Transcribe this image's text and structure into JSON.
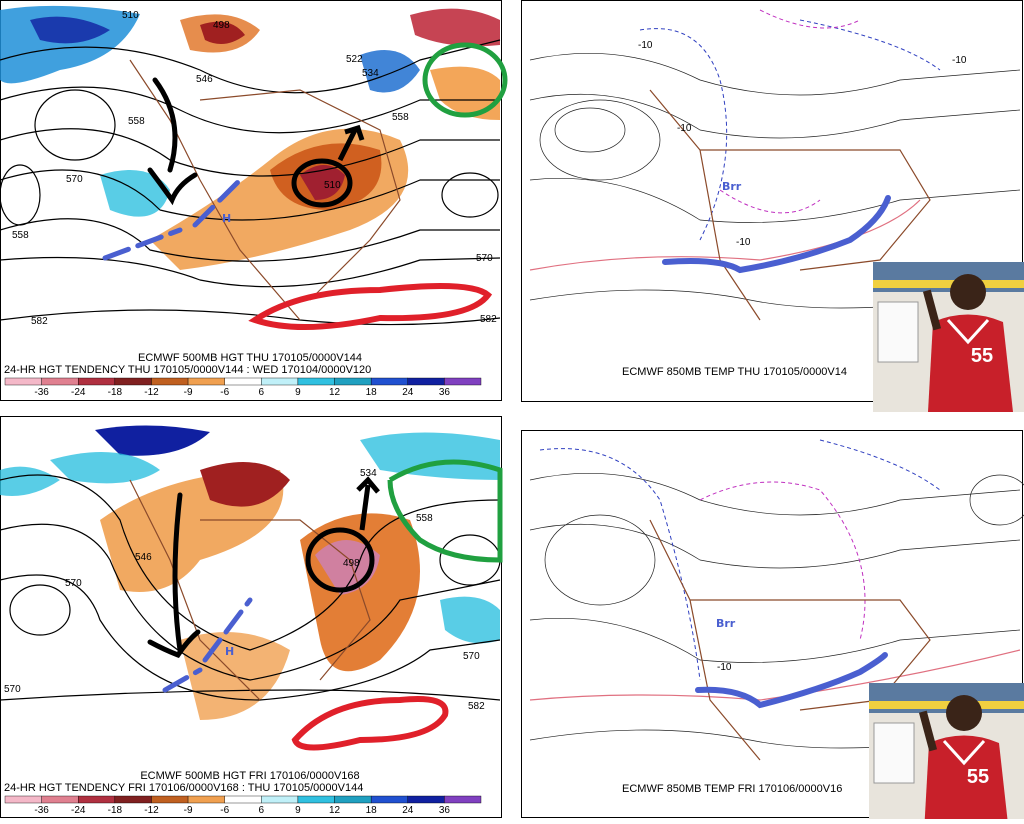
{
  "panels": [
    {
      "caption": "ECMWF 500MB HGT THU 170105/0000V144",
      "subcaption": "24-HR HGT TENDENCY THU 170105/0000V144 : WED 170104/0000V120",
      "contour_labels": [
        "510",
        "498",
        "522",
        "534",
        "546",
        "558",
        "570",
        "558",
        "558",
        "570",
        "582",
        "582",
        "510"
      ],
      "annotation": "H"
    },
    {
      "caption": "ECMWF 850MB TEMP THU 170105/0000V14",
      "contour_labels": [
        "-10",
        "-10",
        "-10",
        "-10"
      ],
      "annotation": "Brr"
    },
    {
      "caption": "ECMWF 500MB HGT FRI 170106/0000V168",
      "subcaption": "24-HR HGT TENDENCY FRI 170106/0000V168 : THU 170105/0000V144",
      "contour_labels": [
        "546",
        "570",
        "558",
        "498",
        "534",
        "570",
        "582",
        "570"
      ],
      "annotation": "H"
    },
    {
      "caption": "ECMWF 850MB TEMP FRI 170106/0000V16",
      "contour_labels": [
        "-10"
      ],
      "annotation": "Brr"
    }
  ],
  "colorbar": [
    "-36",
    "-24",
    "-18",
    "-12",
    "-9",
    "-6",
    "6",
    "9",
    "12",
    "18",
    "24",
    "36"
  ],
  "jersey": "55"
}
